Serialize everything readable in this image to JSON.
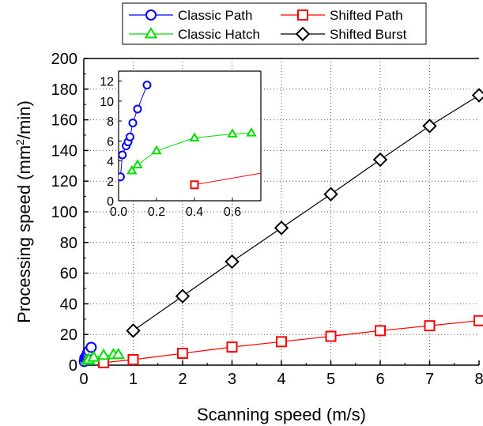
{
  "chart_data": {
    "type": "line",
    "xlabel": "Scanning speed (m/s)",
    "ylabel": "Processing speed (mm",
    "ylabel_sup": "2",
    "ylabel_tail": "/min)",
    "xlim": [
      0,
      8
    ],
    "ylim": [
      0,
      200
    ],
    "xticks": [
      "0",
      "1",
      "2",
      "3",
      "4",
      "5",
      "6",
      "7",
      "8"
    ],
    "yticks": [
      "0",
      "20",
      "40",
      "60",
      "80",
      "100",
      "120",
      "140",
      "160",
      "180",
      "200"
    ],
    "grid": "dotted",
    "legend_position": "top",
    "series": [
      {
        "name": "Classic Path",
        "color": "#0000ff",
        "marker": "circle",
        "x": [
          0.01,
          0.02,
          0.04,
          0.05,
          0.06,
          0.075,
          0.1,
          0.15
        ],
        "y": [
          2.4,
          4.6,
          5.5,
          5.9,
          6.4,
          7.8,
          9.2,
          11.6
        ]
      },
      {
        "name": "Shifted Path",
        "color": "#ff0000",
        "marker": "square",
        "x": [
          0.4,
          1,
          2,
          3,
          4,
          5,
          6,
          7,
          8
        ],
        "y": [
          1.6,
          3.6,
          7.7,
          11.8,
          15.3,
          18.8,
          22.5,
          25.7,
          29
        ]
      },
      {
        "name": "Classic Hatch",
        "color": "#00dd00",
        "marker": "triangle",
        "x": [
          0.07,
          0.1,
          0.2,
          0.4,
          0.6,
          0.7
        ],
        "y": [
          3.0,
          3.6,
          5.0,
          6.3,
          6.7,
          6.8
        ]
      },
      {
        "name": "Shifted Burst",
        "color": "#000000",
        "marker": "diamond",
        "x": [
          1,
          2,
          3,
          4,
          5,
          6,
          7,
          8
        ],
        "y": [
          22.5,
          45,
          67.5,
          89.5,
          111.5,
          134,
          156,
          176
        ]
      }
    ],
    "inset": {
      "xlim": [
        0,
        0.75
      ],
      "ylim": [
        0,
        13
      ],
      "xticks": [
        "0.0",
        "0.2",
        "0.4",
        "0.6"
      ],
      "yticks": [
        "0",
        "2",
        "4",
        "6",
        "8",
        "10",
        "12"
      ]
    }
  }
}
